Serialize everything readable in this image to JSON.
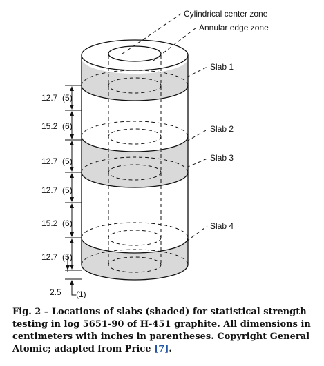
{
  "labels": {
    "center_zone": "Cylindrical center zone",
    "edge_zone": "Annular edge zone",
    "slab1": "Slab 1",
    "slab2": "Slab 2",
    "slab3": "Slab 3",
    "slab4": "Slab 4"
  },
  "dimensions": [
    {
      "label": "12.7  (5)"
    },
    {
      "label": "15.2  (6)"
    },
    {
      "label": "12.7  (5)"
    },
    {
      "label": "12.7  (5)"
    },
    {
      "label": "15.2  (6)"
    },
    {
      "label": "12.7  (5)"
    },
    {
      "label": "2.5"
    },
    {
      "label": "(1)"
    }
  ],
  "caption": {
    "text": "Fig. 2 – Locations of slabs (shaded) for statistical strength testing in log 5651-90 of H-451 graphite. All dimensions in centimeters with inches in parentheses. Copyright General Atomic; adapted from Price ",
    "ref": "[7]",
    "end": "."
  },
  "colors": {
    "slab_fill": "#d9d9d9",
    "line": "#111111",
    "reference": "#2155a6"
  }
}
